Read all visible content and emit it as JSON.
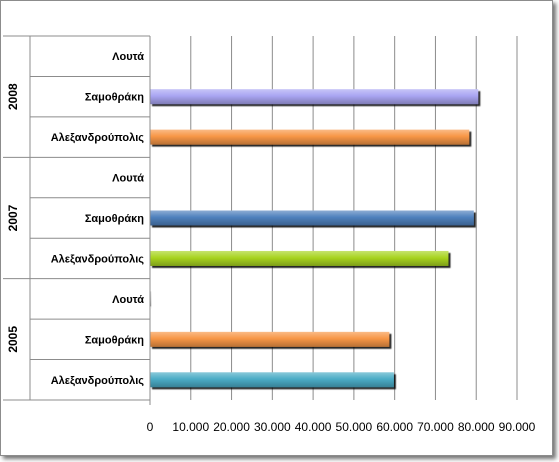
{
  "chart_data": {
    "type": "bar",
    "orientation": "horizontal",
    "title": "",
    "xlabel": "",
    "ylabel": "",
    "xlim": [
      0,
      90
    ],
    "grid": true,
    "legend": "none",
    "x_ticks": [
      "0",
      "10.000",
      "20.000",
      "30.000",
      "40.000",
      "50.000",
      "60.000",
      "70.000",
      "80.000",
      "90.000"
    ],
    "groups": [
      {
        "label": "2005",
        "bars": [
          {
            "category": "Αλεξανδρούπολις",
            "value": 59.8,
            "color": "#4bacc6"
          },
          {
            "category": "Σαμοθράκη",
            "value": 58.7,
            "color": "#f79646"
          },
          {
            "category": "Λουτά",
            "value": 0.3,
            "color": "#bfbfbf"
          }
        ]
      },
      {
        "label": "2007",
        "bars": [
          {
            "category": "Αλεξανδρούπολις",
            "value": 73.2,
            "color": "#a8d420"
          },
          {
            "category": "Σαμοθράκη",
            "value": 79.4,
            "color": "#4f81bd"
          },
          {
            "category": "Λουτά",
            "value": 0,
            "color": "#bfbfbf"
          }
        ]
      },
      {
        "label": "2008",
        "bars": [
          {
            "category": "Αλεξανδρούπολις",
            "value": 78.3,
            "color": "#f79646"
          },
          {
            "category": "Σαμοθράκη",
            "value": 80.5,
            "color": "#a9a5f2"
          },
          {
            "category": "Λουτά",
            "value": 0,
            "color": "#bfbfbf"
          }
        ]
      }
    ]
  }
}
